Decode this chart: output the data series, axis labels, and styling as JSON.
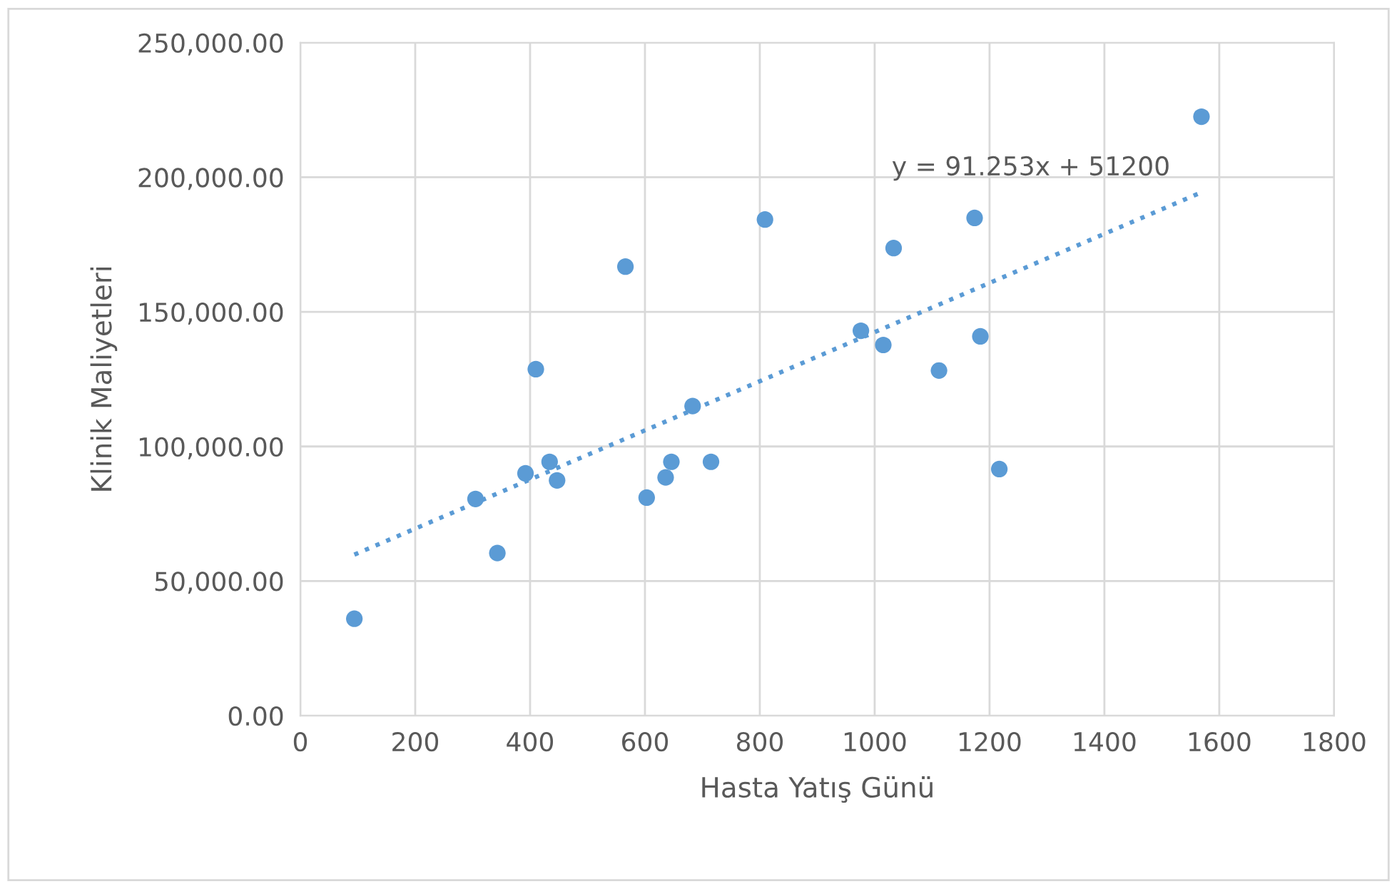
{
  "chart_data": {
    "type": "scatter",
    "xlabel": "Hasta Yatış Günü",
    "ylabel": "Klinik Maliyetleri",
    "xlim": [
      0,
      1800
    ],
    "xticks": [
      0,
      200,
      400,
      600,
      800,
      1000,
      1200,
      1400,
      1600,
      1800
    ],
    "ylim": [
      0,
      250000
    ],
    "yticks": [
      {
        "value": 0,
        "label": "0.00"
      },
      {
        "value": 50000,
        "label": "50,000.00"
      },
      {
        "value": 100000,
        "label": "100,000.00"
      },
      {
        "value": 150000,
        "label": "150,000.00"
      },
      {
        "value": 200000,
        "label": "200,000.00"
      },
      {
        "value": 250000,
        "label": "250,000.00"
      }
    ],
    "grid": true,
    "legend": false,
    "series": [
      {
        "color": "#5b9bd5",
        "marker": "circle",
        "x": [
          94,
          305,
          343,
          392,
          410,
          434,
          447,
          566,
          603,
          636,
          646,
          683,
          715,
          809,
          976,
          1015,
          1033,
          1112,
          1174,
          1184,
          1217,
          1569
        ],
        "values": [
          36000,
          80500,
          60400,
          90000,
          128700,
          94300,
          87400,
          166800,
          81000,
          88500,
          94300,
          115000,
          94300,
          184300,
          143000,
          137700,
          173700,
          128200,
          184900,
          140900,
          91600,
          222500
        ]
      },
      {
        "type": "line",
        "color": "#5b9bd5",
        "marker": "none",
        "line_style": "dotted",
        "x": [
          94,
          1569
        ],
        "values": [
          59800,
          194400
        ]
      }
    ],
    "annotations": [
      "y = 91.253x + 51200"
    ]
  }
}
